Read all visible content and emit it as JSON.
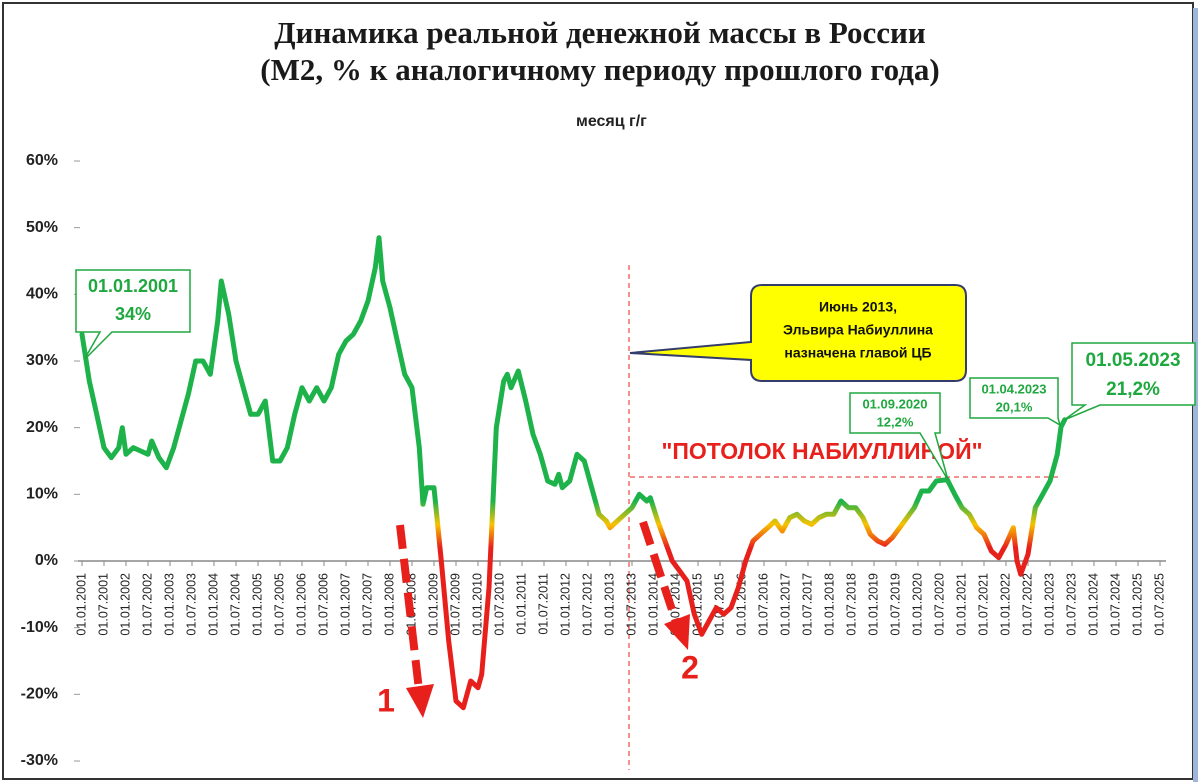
{
  "chart_data": {
    "type": "line",
    "title": "Динамика реальной денежной массы в России",
    "subtitle": "(M2, % к аналогичному периоду прошлого года)",
    "legend": "top",
    "grid": false,
    "ylim": [
      -30,
      60
    ],
    "yticks": [
      {
        "value": -30,
        "label": "-30%"
      },
      {
        "value": -20,
        "label": "-20%"
      },
      {
        "value": -10,
        "label": "-10%"
      },
      {
        "value": 0,
        "label": "0%"
      },
      {
        "value": 10,
        "label": "10%"
      },
      {
        "value": 20,
        "label": "20%"
      },
      {
        "value": 30,
        "label": "30%"
      },
      {
        "value": 40,
        "label": "40%"
      },
      {
        "value": 50,
        "label": "50%"
      },
      {
        "value": 60,
        "label": "60%"
      }
    ],
    "xticks": [
      "01.01.2001",
      "01.07.2001",
      "01.01.2002",
      "01.07.2002",
      "01.01.2003",
      "01.07.2003",
      "01.01.2004",
      "01.07.2004",
      "01.01.2005",
      "01.07.2005",
      "01.01.2006",
      "01.07.2006",
      "01.01.2007",
      "01.07.2007",
      "01.01.2008",
      "01.07.2008",
      "01.01.2009",
      "01.07.2009",
      "01.01.2010",
      "01.07.2010",
      "01.01.2011",
      "01.07.2011",
      "01.01.2012",
      "01.07.2012",
      "01.01.2013",
      "01.07.2013",
      "01.01.2014",
      "01.07.2014",
      "01.01.2015",
      "01.07.2015",
      "01.01.2016",
      "01.07.2016",
      "01.01.2017",
      "01.07.2017",
      "01.01.2018",
      "01.07.2018",
      "01.01.2019",
      "01.07.2019",
      "01.01.2020",
      "01.07.2020",
      "01.01.2021",
      "01.07.2021",
      "01.01.2022",
      "01.07.2022",
      "01.01.2023",
      "01.07.2023",
      "01.01.2024",
      "01.07.2024",
      "01.01.2025",
      "01.07.2025"
    ],
    "color_scale": [
      {
        "value": 9,
        "color": "#1db34a"
      },
      {
        "value": 5.5,
        "color": "#f7c200"
      },
      {
        "value": 2,
        "color": "#e8201c"
      }
    ],
    "x": [
      "01.01.2001",
      "01.03.2001",
      "01.05.2001",
      "01.07.2001",
      "01.09.2001",
      "01.11.2001",
      "01.12.2001",
      "01.01.2002",
      "01.03.2002",
      "01.05.2002",
      "01.07.2002",
      "01.08.2002",
      "01.10.2002",
      "01.12.2002",
      "01.02.2003",
      "01.04.2003",
      "01.06.2003",
      "01.08.2003",
      "01.10.2003",
      "01.12.2003",
      "01.02.2004",
      "01.03.2004",
      "01.05.2004",
      "01.07.2004",
      "01.09.2004",
      "01.11.2004",
      "01.01.2005",
      "01.03.2005",
      "01.05.2005",
      "01.07.2005",
      "01.09.2005",
      "01.11.2005",
      "01.01.2006",
      "01.03.2006",
      "01.05.2006",
      "01.07.2006",
      "01.09.2006",
      "01.11.2006",
      "01.01.2007",
      "01.03.2007",
      "01.05.2007",
      "01.07.2007",
      "01.09.2007",
      "01.10.2007",
      "01.11.2007",
      "01.01.2008",
      "01.03.2008",
      "01.05.2008",
      "01.07.2008",
      "01.09.2008",
      "01.10.2008",
      "01.11.2008",
      "01.01.2009",
      "01.03.2009",
      "01.05.2009",
      "01.07.2009",
      "01.09.2009",
      "01.11.2009",
      "01.01.2010",
      "01.02.2010",
      "01.04.2010",
      "01.05.2010",
      "01.06.2010",
      "01.08.2010",
      "01.09.2010",
      "01.10.2010",
      "01.12.2010",
      "01.02.2011",
      "01.04.2011",
      "01.06.2011",
      "01.08.2011",
      "01.10.2011",
      "01.11.2011",
      "01.12.2011",
      "01.02.2012",
      "01.04.2012",
      "01.06.2012",
      "01.08.2012",
      "01.10.2012",
      "01.12.2012",
      "01.01.2013",
      "01.03.2013",
      "01.05.2013",
      "01.07.2013",
      "01.09.2013",
      "01.11.2013",
      "01.12.2013",
      "01.02.2014",
      "01.04.2014",
      "01.06.2014",
      "01.08.2014",
      "01.10.2014",
      "01.12.2014",
      "01.02.2015",
      "01.04.2015",
      "01.06.2015",
      "01.08.2015",
      "01.10.2015",
      "01.12.2015",
      "01.02.2016",
      "01.04.2016",
      "01.06.2016",
      "01.08.2016",
      "01.10.2016",
      "01.12.2016",
      "01.02.2017",
      "01.04.2017",
      "01.06.2017",
      "01.08.2017",
      "01.10.2017",
      "01.12.2017",
      "01.02.2018",
      "01.04.2018",
      "01.06.2018",
      "01.08.2018",
      "01.10.2018",
      "01.12.2018",
      "01.02.2019",
      "01.04.2019",
      "01.06.2019",
      "01.08.2019",
      "01.10.2019",
      "01.12.2019",
      "01.02.2020",
      "01.04.2020",
      "01.06.2020",
      "01.09.2020",
      "01.11.2020",
      "01.01.2021",
      "01.03.2021",
      "01.05.2021",
      "01.07.2021",
      "01.09.2021",
      "01.11.2021",
      "01.01.2022",
      "01.03.2022",
      "01.04.2022",
      "01.05.2022",
      "01.07.2022",
      "01.09.2022",
      "01.11.2022",
      "01.01.2023",
      "01.03.2023",
      "01.04.2023",
      "01.05.2023"
    ],
    "series": [
      {
        "name": "месяц г/г",
        "values": [
          34,
          27,
          22,
          17,
          15.5,
          17,
          20,
          16,
          17,
          16.5,
          16,
          18,
          15.5,
          14,
          17,
          21,
          25,
          30,
          30,
          28,
          36,
          42,
          37,
          30,
          26,
          22,
          22,
          24,
          15,
          15,
          17,
          22,
          26,
          24,
          26,
          24,
          26,
          31,
          33,
          34,
          36,
          39,
          44,
          48.5,
          42,
          38,
          33,
          28,
          26,
          17,
          8.5,
          11,
          11,
          0,
          -12,
          -21,
          -22,
          -18,
          -19,
          -17,
          -4,
          8,
          20,
          27,
          28,
          26,
          28.5,
          24,
          19,
          16,
          12,
          11.5,
          13,
          11,
          12,
          16,
          15,
          11,
          7,
          6,
          5,
          6,
          7,
          8,
          10,
          9,
          9.5,
          6,
          3,
          0,
          -1.5,
          -3,
          -8,
          -11,
          -9,
          -7,
          -8,
          -7,
          -4,
          0,
          3,
          4,
          5,
          6,
          4.5,
          6.5,
          7,
          6,
          5.5,
          6.5,
          7,
          7,
          9,
          8,
          8,
          6.5,
          4,
          3,
          2.5,
          3.5,
          5,
          6.5,
          8,
          10.5,
          10.5,
          12,
          12.2,
          10,
          8,
          7,
          5,
          4,
          1.5,
          0.5,
          2.5,
          5,
          0,
          -2,
          1,
          8,
          10,
          12,
          16,
          20.1,
          21.2
        ]
      }
    ],
    "annotations": [
      {
        "lines": [
          "01.01.2001",
          "34%"
        ]
      },
      {
        "lines": [
          "Июнь 2013,",
          "Эльвира Набиуллина",
          "назначена главой ЦБ"
        ]
      },
      {
        "lines": [
          "\"ПОТОЛОК НАБИУЛЛИНОЙ\""
        ]
      },
      {
        "lines": [
          "01.09.2020",
          "12,2%"
        ]
      },
      {
        "lines": [
          "01.04.2023",
          "20,1%"
        ]
      },
      {
        "lines": [
          "01.05.2023",
          "21,2%"
        ]
      },
      {
        "lines": [
          "1"
        ]
      },
      {
        "lines": [
          "2"
        ]
      }
    ]
  }
}
